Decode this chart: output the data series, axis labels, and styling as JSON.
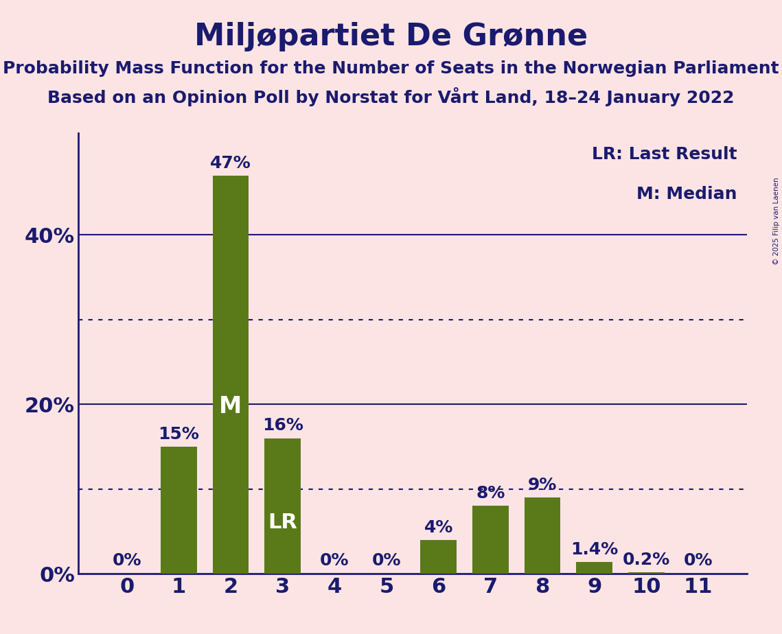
{
  "title": "Miljøpartiet De Grønne",
  "subtitle1": "Probability Mass Function for the Number of Seats in the Norwegian Parliament",
  "subtitle2": "Based on an Opinion Poll by Norstat for Vårt Land, 18–24 January 2022",
  "copyright": "© 2025 Filip van Laenen",
  "categories": [
    0,
    1,
    2,
    3,
    4,
    5,
    6,
    7,
    8,
    9,
    10,
    11
  ],
  "values": [
    0.0,
    15.0,
    47.0,
    16.0,
    0.0,
    0.0,
    4.0,
    8.0,
    9.0,
    1.4,
    0.2,
    0.0
  ],
  "bar_color": "#5a7a1a",
  "background_color": "#fce4e4",
  "text_color": "#1a1a6e",
  "bar_labels": [
    "0%",
    "15%",
    "47%",
    "16%",
    "0%",
    "0%",
    "4%",
    "8%",
    "9%",
    "1.4%",
    "0.2%",
    "0%"
  ],
  "median_bar": 2,
  "lr_bar": 3,
  "ylim": [
    0,
    52
  ],
  "yticks": [
    0,
    20,
    40
  ],
  "ytick_labels": [
    "0%",
    "20%",
    "40%"
  ],
  "dotted_lines": [
    10,
    30
  ],
  "legend_lr": "LR: Last Result",
  "legend_m": "M: Median",
  "title_fontsize": 32,
  "subtitle_fontsize": 18,
  "axis_fontsize": 22,
  "bar_label_fontsize": 18,
  "inside_label_fontsize": 24
}
